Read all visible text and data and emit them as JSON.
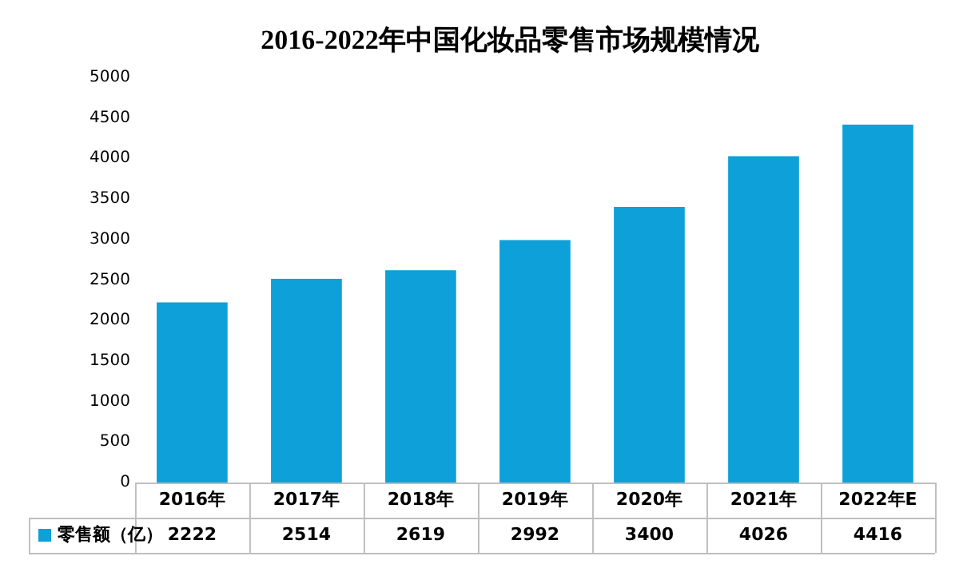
{
  "chart_data": {
    "type": "bar",
    "title": "2016-2022年中国化妆品零售市场规模情况",
    "categories": [
      "2016年",
      "2017年",
      "2018年",
      "2019年",
      "2020年",
      "2021年",
      "2022年E"
    ],
    "series": [
      {
        "name": "零售额（亿）",
        "color": "#0ea0d8",
        "values": [
          2222,
          2514,
          2619,
          2992,
          3400,
          4026,
          4416
        ]
      }
    ],
    "ylim": [
      0,
      5000
    ],
    "yticks": [
      0,
      500,
      1000,
      1500,
      2000,
      2500,
      3000,
      3500,
      4000,
      4500,
      5000
    ],
    "grid": false,
    "legend": "bottom",
    "data_labels": true
  }
}
